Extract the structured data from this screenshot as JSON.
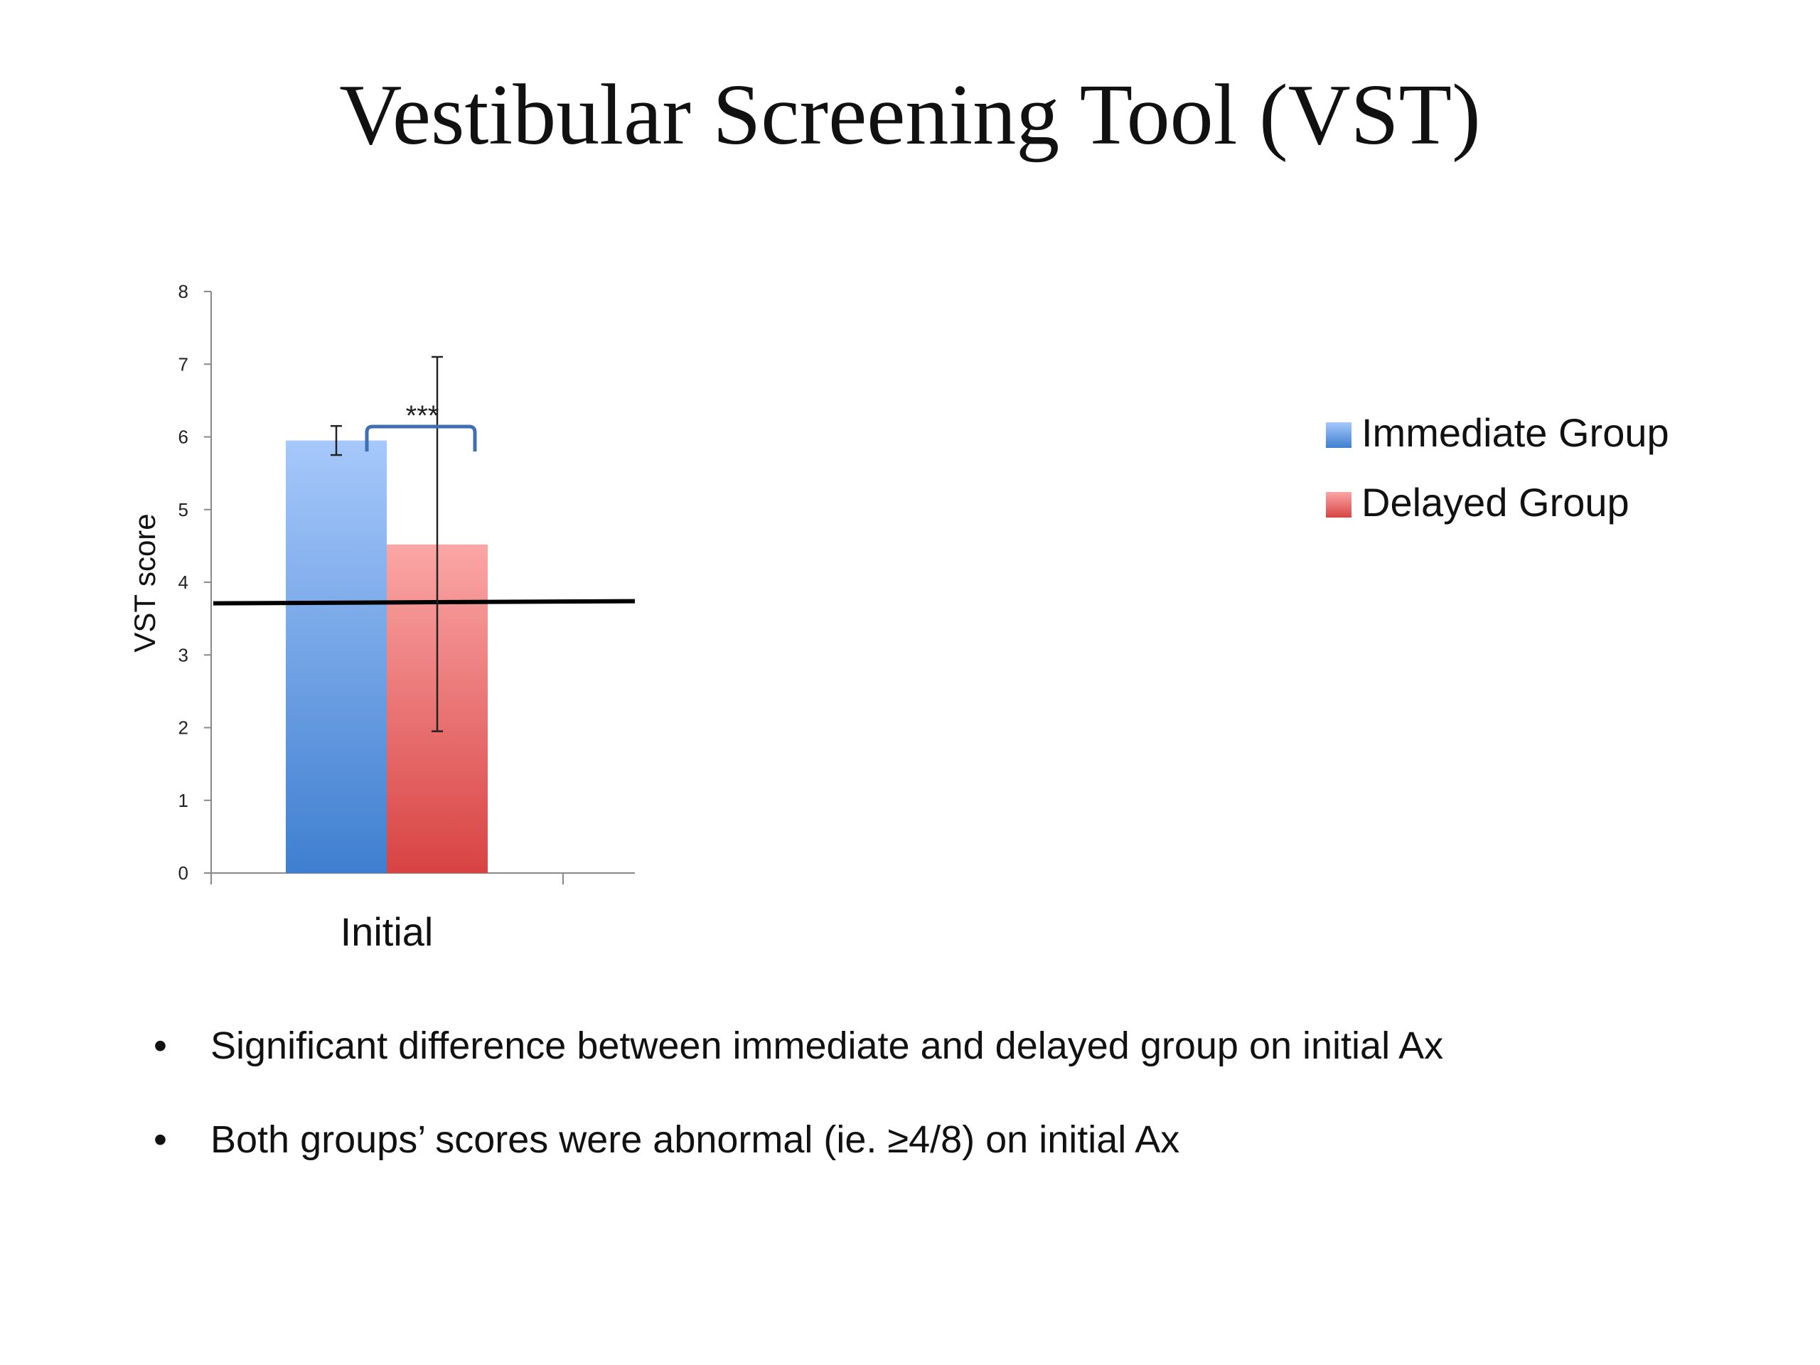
{
  "slide": {
    "title": "Vestibular Screening Tool (VST)",
    "bullets": [
      "Significant difference between immediate and delayed group on initial Ax",
      "Both groups’ scores were abnormal (ie. ≥4/8) on initial Ax"
    ],
    "bullet_glyph": "•"
  },
  "chart_data": {
    "type": "bar",
    "categories": [
      "Initial"
    ],
    "series": [
      {
        "name": "Immediate Group",
        "values": [
          5.95
        ],
        "error_low": [
          5.75
        ],
        "error_high": [
          6.15
        ],
        "color": "#4a86d8"
      },
      {
        "name": "Delayed Group",
        "values": [
          4.52
        ],
        "error_low": [
          1.95
        ],
        "error_high": [
          7.1
        ],
        "color": "#e05a5a"
      }
    ],
    "ylabel": "VST score",
    "xlabel": "",
    "ylim": [
      0,
      8
    ],
    "yticks": [
      "0",
      "1",
      "2",
      "3",
      "4",
      "5",
      "6",
      "7",
      "8"
    ],
    "reference_line": 3.72,
    "significance": "***",
    "legend_position": "right",
    "grid": false
  }
}
